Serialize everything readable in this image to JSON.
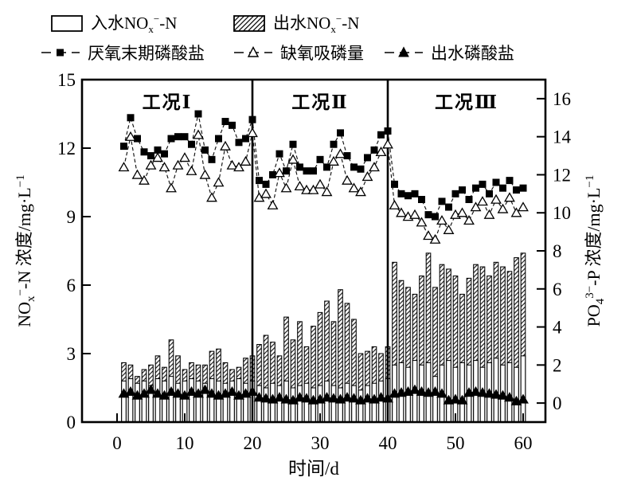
{
  "figure": {
    "background": "#ffffff",
    "ink": "#000000"
  },
  "legend": {
    "row1": [
      {
        "swatch": "open-bar",
        "label": [
          {
            "t": "入水NO"
          },
          {
            "t": "x",
            "s": "sub"
          },
          {
            "t": "−",
            "s": "sup"
          },
          {
            "t": "-N"
          }
        ]
      },
      {
        "swatch": "hatched-bar",
        "label": [
          {
            "t": "出水NO"
          },
          {
            "t": "x",
            "s": "sub"
          },
          {
            "t": "−",
            "s": "sup"
          },
          {
            "t": "-N"
          }
        ]
      }
    ],
    "row2": [
      {
        "marker": "filled-square",
        "label": [
          {
            "t": "厌氧末期磷酸盐"
          }
        ]
      },
      {
        "marker": "open-triangle",
        "label": [
          {
            "t": "缺氧吸磷量"
          }
        ]
      },
      {
        "marker": "filled-triangle",
        "label": [
          {
            "t": "出水磷酸盐"
          }
        ]
      }
    ]
  },
  "axes": {
    "x": {
      "title": "时间/d",
      "ticks": [
        0,
        10,
        20,
        30,
        40,
        50,
        60
      ]
    },
    "y_left": {
      "title_segments": [
        {
          "t": "NO"
        },
        {
          "t": "x",
          "s": "sub"
        },
        {
          "t": "−",
          "s": "sup"
        },
        {
          "t": "-N 浓度/mg·L"
        },
        {
          "t": "−1",
          "s": "sup"
        }
      ],
      "ticks": [
        0,
        3,
        6,
        9,
        12,
        15
      ],
      "range": [
        0,
        15
      ]
    },
    "y_right": {
      "title_segments": [
        {
          "t": "PO"
        },
        {
          "t": "4",
          "s": "sub"
        },
        {
          "t": "3−",
          "s": "sup"
        },
        {
          "t": "-P 浓度/mg·L"
        },
        {
          "t": "−1",
          "s": "sup"
        }
      ],
      "ticks": [
        0,
        2,
        4,
        6,
        8,
        10,
        12,
        14,
        16
      ],
      "range": [
        -1,
        17
      ]
    }
  },
  "regions": [
    {
      "label": "工况Ⅰ",
      "day_start": 0,
      "day_end": 20
    },
    {
      "label": "工况Ⅱ",
      "day_start": 20,
      "day_end": 40
    },
    {
      "label": "工况Ⅲ",
      "day_start": 40,
      "day_end": 60
    }
  ],
  "dividers_day": [
    20,
    40
  ],
  "chart_data": {
    "type": "combo-bar-line",
    "x_label": "时间/d",
    "x_days": [
      1,
      2,
      3,
      4,
      5,
      6,
      7,
      8,
      9,
      10,
      11,
      12,
      13,
      14,
      15,
      16,
      17,
      18,
      19,
      20,
      21,
      22,
      23,
      24,
      25,
      26,
      27,
      28,
      29,
      30,
      31,
      32,
      33,
      34,
      35,
      36,
      37,
      38,
      39,
      40,
      41,
      42,
      43,
      44,
      45,
      46,
      47,
      48,
      49,
      50,
      51,
      52,
      53,
      54,
      55,
      56,
      57,
      58,
      59,
      60
    ],
    "series": [
      {
        "name": "入水NOx−-N",
        "type": "bar",
        "axis": "left",
        "style": "open",
        "values": [
          1.8,
          1.9,
          1.7,
          1.8,
          1.6,
          1.9,
          1.8,
          2.0,
          1.7,
          1.8,
          1.9,
          1.8,
          1.7,
          1.9,
          1.8,
          1.7,
          1.8,
          1.9,
          1.7,
          1.8,
          1.6,
          1.5,
          1.7,
          1.6,
          1.8,
          1.5,
          1.6,
          1.7,
          1.5,
          1.6,
          1.8,
          1.6,
          1.5,
          1.7,
          1.6,
          1.4,
          1.6,
          1.7,
          1.8,
          1.9,
          2.5,
          2.6,
          2.4,
          2.7,
          2.5,
          2.6,
          2.0,
          2.5,
          2.7,
          2.4,
          2.6,
          2.5,
          2.7,
          2.4,
          2.6,
          2.8,
          2.5,
          2.6,
          2.4,
          2.9
        ]
      },
      {
        "name": "出水NOx−-N",
        "type": "bar",
        "axis": "left",
        "style": "hatched",
        "values": [
          2.6,
          2.5,
          2.0,
          2.3,
          2.5,
          2.9,
          2.4,
          3.6,
          2.9,
          2.3,
          2.6,
          2.5,
          2.5,
          3.1,
          3.2,
          2.6,
          2.3,
          2.4,
          2.8,
          2.9,
          3.4,
          3.8,
          3.5,
          2.9,
          4.6,
          3.6,
          4.4,
          3.3,
          4.2,
          4.8,
          5.3,
          4.4,
          5.8,
          5.2,
          4.5,
          3.0,
          3.1,
          3.3,
          3.0,
          3.3,
          7.0,
          6.2,
          5.9,
          5.6,
          6.4,
          7.4,
          5.9,
          6.9,
          6.7,
          6.4,
          5.6,
          6.3,
          6.9,
          6.8,
          6.4,
          7.0,
          6.8,
          6.6,
          7.2,
          7.4
        ]
      },
      {
        "name": "厌氧末期磷酸盐",
        "type": "line",
        "axis": "right",
        "marker": "filled-square",
        "values": [
          13.5,
          15.0,
          13.9,
          13.2,
          13.0,
          13.3,
          13.1,
          13.9,
          14.0,
          14.0,
          13.6,
          15.2,
          13.3,
          12.8,
          13.9,
          14.8,
          14.6,
          13.7,
          13.9,
          14.9,
          11.7,
          11.5,
          12.0,
          13.1,
          12.2,
          13.6,
          12.4,
          12.2,
          12.2,
          12.8,
          12.4,
          13.6,
          14.2,
          13.0,
          12.4,
          12.3,
          12.9,
          13.3,
          14.1,
          14.3,
          11.5,
          11.0,
          10.9,
          11.0,
          10.7,
          9.9,
          9.8,
          10.6,
          10.3,
          11.0,
          11.2,
          10.7,
          11.3,
          11.5,
          11.0,
          11.6,
          11.3,
          11.7,
          11.2,
          11.3
        ]
      },
      {
        "name": "缺氧吸磷量",
        "type": "line",
        "axis": "right",
        "marker": "open-triangle",
        "values": [
          12.4,
          14.0,
          12.0,
          11.7,
          12.5,
          12.9,
          12.4,
          11.3,
          12.5,
          12.9,
          12.2,
          14.1,
          12.0,
          10.8,
          11.6,
          13.5,
          12.5,
          12.4,
          12.7,
          14.2,
          10.8,
          11.0,
          10.4,
          12.1,
          11.3,
          12.8,
          11.4,
          11.2,
          11.2,
          11.5,
          11.1,
          12.7,
          13.1,
          11.7,
          11.3,
          11.1,
          11.9,
          12.4,
          13.2,
          13.6,
          10.4,
          10.0,
          9.8,
          9.9,
          9.5,
          8.8,
          8.6,
          9.6,
          9.1,
          9.9,
          10.0,
          9.6,
          10.3,
          10.6,
          9.9,
          10.7,
          10.2,
          10.8,
          10.0,
          10.3
        ]
      },
      {
        "name": "出水磷酸盐",
        "type": "line",
        "axis": "right",
        "marker": "filled-triangle",
        "values": [
          0.5,
          0.6,
          0.4,
          0.5,
          0.7,
          0.5,
          0.4,
          0.6,
          0.5,
          0.4,
          0.6,
          0.5,
          0.7,
          0.5,
          0.4,
          0.5,
          0.6,
          0.4,
          0.5,
          0.6,
          0.3,
          0.25,
          0.2,
          0.3,
          0.2,
          0.15,
          0.3,
          0.25,
          0.15,
          0.2,
          0.3,
          0.25,
          0.2,
          0.3,
          0.25,
          0.15,
          0.25,
          0.2,
          0.3,
          0.25,
          0.5,
          0.55,
          0.6,
          0.7,
          0.6,
          0.55,
          0.6,
          0.5,
          0.15,
          0.2,
          0.15,
          0.55,
          0.6,
          0.55,
          0.5,
          0.45,
          0.4,
          0.3,
          0.1,
          0.2
        ]
      }
    ]
  }
}
